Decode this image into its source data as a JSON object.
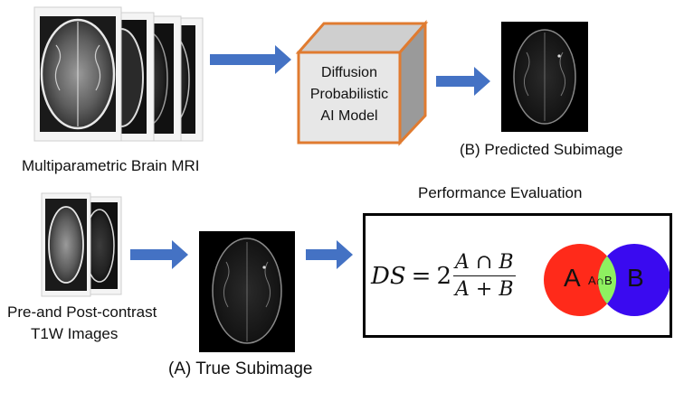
{
  "inputs": {
    "mri_caption": "Multiparametric Brain MRI",
    "t1w_caption_line1": "Pre-and Post-contrast",
    "t1w_caption_line2": "T1W Images"
  },
  "model": {
    "line1": "Diffusion",
    "line2": "Probabilistic",
    "line3": "AI Model"
  },
  "outputs": {
    "predicted_caption": "(B) Predicted Subimage",
    "true_caption": "(A) True Subimage"
  },
  "evaluation": {
    "title": "Performance Evaluation",
    "formula_lhs": "DS",
    "formula_equals": "=",
    "formula_coefficient": "2",
    "formula_numerator": "A ∩ B",
    "formula_denominator": "A + B",
    "venn_a_label": "A",
    "venn_b_label": "B",
    "venn_intersection_label": "A∩B"
  },
  "colors": {
    "arrow": "#4472c4",
    "cube_border": "#e07b30",
    "venn_a": "#ff2a1a",
    "venn_b": "#3a0af0",
    "venn_intersection": "#8ef060"
  }
}
